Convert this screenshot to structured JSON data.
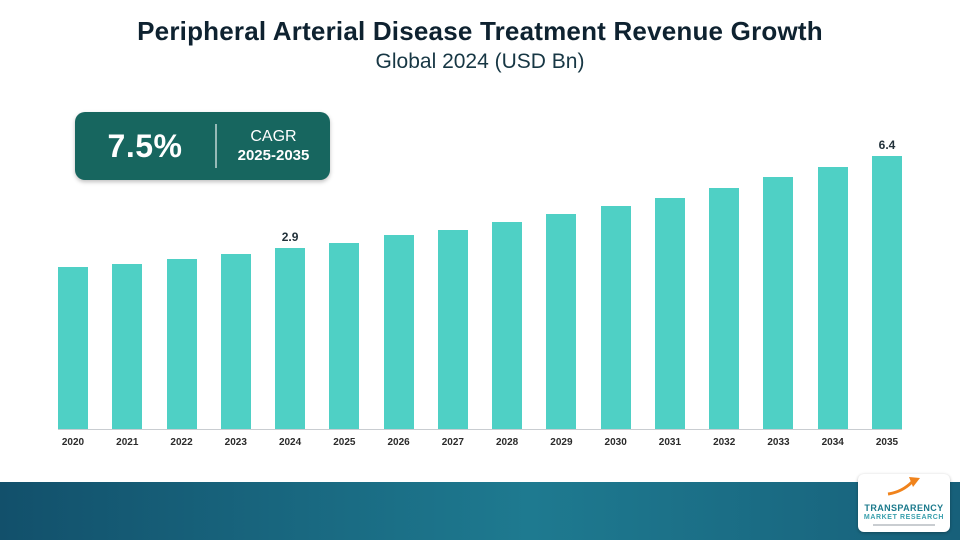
{
  "header": {
    "title": "Peripheral Arterial Disease Treatment Revenue Growth",
    "subtitle": "Global 2024 (USD Bn)"
  },
  "badge": {
    "value": "7.5%",
    "label": "CAGR",
    "range": "2025-2035"
  },
  "colors": {
    "bar": "#4fd0c5",
    "badge_bg": "#17665f",
    "footer_start": "#12506b",
    "footer_end": "#1e7a90",
    "brand_teal": "#1b7a8c",
    "accent_orange": "#f0831c"
  },
  "chart_data": {
    "type": "bar",
    "title": "Peripheral Arterial Disease Treatment Revenue Growth",
    "subtitle": "Global 2024 (USD Bn)",
    "unit": "USD Bn",
    "categories": [
      "2020",
      "2021",
      "2022",
      "2023",
      "2024",
      "2025",
      "2026",
      "2027",
      "2028",
      "2029",
      "2030",
      "2031",
      "2032",
      "2033",
      "2034",
      "2035"
    ],
    "values": [
      2.2,
      2.3,
      2.5,
      2.7,
      2.9,
      3.1,
      3.4,
      3.6,
      3.9,
      4.2,
      4.5,
      4.8,
      5.2,
      5.6,
      6.0,
      6.4
    ],
    "data_labels": {
      "2024": "2.9",
      "2035": "6.4"
    },
    "xlabel": "",
    "ylabel": "",
    "grid": false,
    "legend": "none",
    "cagr": "7.5%",
    "cagr_period": "2025-2035"
  },
  "logo": {
    "line1": "TRANSPARENCY",
    "line2": "MARKET RESEARCH"
  }
}
